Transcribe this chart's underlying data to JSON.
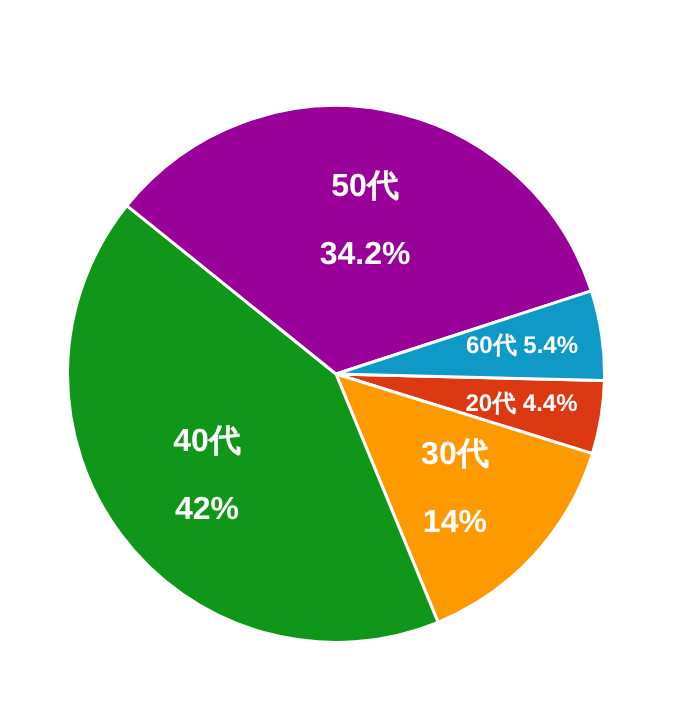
{
  "chart_data": {
    "type": "pie",
    "categories": [
      "20代",
      "30代",
      "40代",
      "50代",
      "60代"
    ],
    "values": [
      4.4,
      14,
      42,
      34.2,
      5.4
    ],
    "value_labels": [
      "4.4%",
      "14%",
      "42%",
      "34.2%",
      "5.4%"
    ],
    "colors": [
      "#dc3912",
      "#ff9900",
      "#109618",
      "#990099",
      "#0f99c6"
    ],
    "legend": false
  }
}
